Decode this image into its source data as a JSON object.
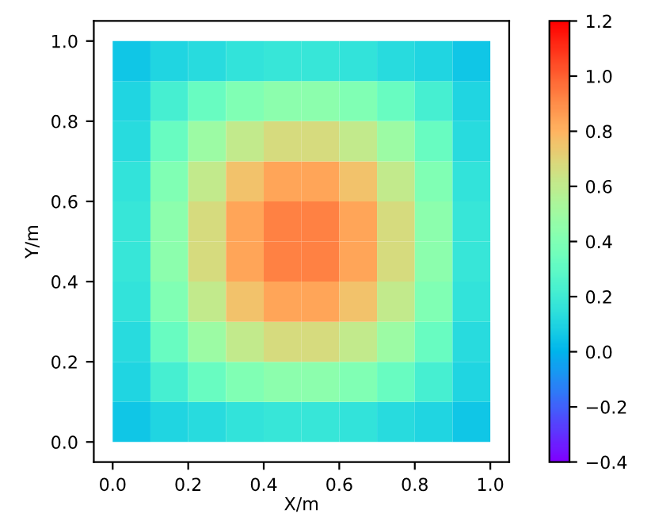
{
  "chart_data": {
    "type": "heatmap",
    "xlabel": "X/m",
    "ylabel": "Y/m",
    "x": [
      0.05,
      0.15,
      0.25,
      0.35,
      0.45,
      0.55,
      0.65,
      0.75,
      0.85,
      0.95
    ],
    "cells": [
      [
        0.05,
        0.1,
        0.13,
        0.16,
        0.17,
        0.17,
        0.16,
        0.13,
        0.1,
        0.05
      ],
      [
        0.1,
        0.22,
        0.33,
        0.4,
        0.44,
        0.44,
        0.4,
        0.33,
        0.22,
        0.1
      ],
      [
        0.13,
        0.33,
        0.49,
        0.61,
        0.67,
        0.67,
        0.61,
        0.49,
        0.33,
        0.13
      ],
      [
        0.16,
        0.4,
        0.61,
        0.76,
        0.84,
        0.84,
        0.76,
        0.61,
        0.4,
        0.16
      ],
      [
        0.17,
        0.44,
        0.67,
        0.84,
        0.93,
        0.93,
        0.84,
        0.67,
        0.44,
        0.17
      ],
      [
        0.17,
        0.44,
        0.67,
        0.84,
        0.93,
        0.93,
        0.84,
        0.67,
        0.44,
        0.17
      ],
      [
        0.16,
        0.4,
        0.61,
        0.76,
        0.84,
        0.84,
        0.76,
        0.61,
        0.4,
        0.16
      ],
      [
        0.13,
        0.33,
        0.49,
        0.61,
        0.67,
        0.67,
        0.61,
        0.49,
        0.33,
        0.13
      ],
      [
        0.1,
        0.22,
        0.33,
        0.4,
        0.44,
        0.44,
        0.4,
        0.33,
        0.22,
        0.1
      ],
      [
        0.05,
        0.1,
        0.13,
        0.16,
        0.17,
        0.17,
        0.16,
        0.13,
        0.1,
        0.05
      ]
    ],
    "xlim": [
      -0.05,
      1.05
    ],
    "ylim": [
      -0.05,
      1.05
    ],
    "xticks": [
      {
        "value": 0,
        "label": "0.0"
      },
      0.2,
      0.4,
      0.6,
      0.8,
      {
        "value": 1.0,
        "label": "1.0"
      }
    ],
    "yticks": [
      {
        "value": 0,
        "label": "0.0"
      },
      0.2,
      0.4,
      0.6,
      0.8,
      {
        "value": 1.0,
        "label": "1.0"
      }
    ],
    "clim": [
      -0.4,
      1.2
    ],
    "cticks": [
      {
        "value": -0.4,
        "label": "−0.4"
      },
      {
        "value": -0.2,
        "label": "−0.2"
      },
      {
        "value": 0,
        "label": "0.0"
      },
      0.2,
      0.4,
      0.6,
      0.8,
      {
        "value": 1.0,
        "label": "1.0"
      },
      1.2
    ],
    "grid": false
  }
}
